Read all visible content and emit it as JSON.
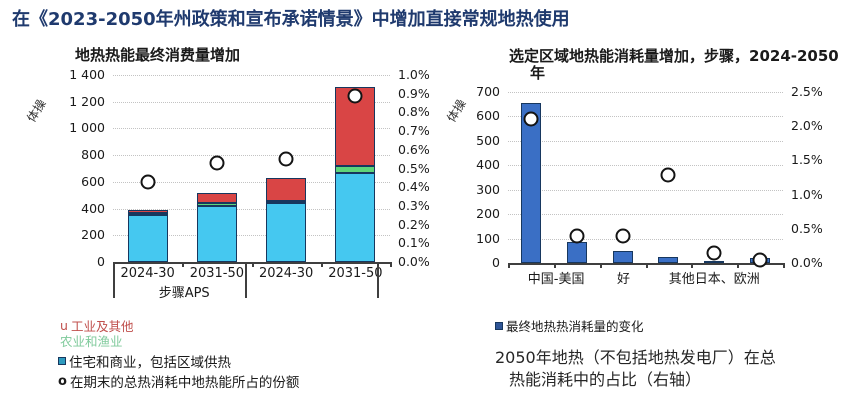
{
  "page": {
    "title": "在《2023-2050年州政策和宣布承诺情景》中增加直接常规地热使用"
  },
  "colors": {
    "title_blue": "#1f3a6e",
    "residential": "#45c8f0",
    "agriculture": "#5fd57a",
    "industry": "#d94545",
    "bar_blue": "#3a6fc5",
    "bar_border": "#17375e",
    "legend_red": "#c0504d",
    "legend_green": "#7fca9b",
    "legend_square_left": "#2e9bbf",
    "legend_square_right": "#2f5597"
  },
  "chart_data": [
    {
      "type": "bar",
      "title": "地热热能最终消费量增加",
      "ylabel": "体操",
      "categories": [
        "2024-30",
        "2031-50",
        "2024-30",
        "2031-50"
      ],
      "group_labels": [
        "步骤",
        "APS"
      ],
      "series": [
        {
          "name": "住宅和商业，包括区域供热",
          "color_key": "residential",
          "values": [
            350,
            420,
            440,
            665
          ]
        },
        {
          "name": "农业和渔业",
          "color_key": "agriculture",
          "values": [
            15,
            25,
            20,
            50
          ]
        },
        {
          "name": "工业及其他",
          "color_key": "industry",
          "values": [
            25,
            75,
            170,
            595
          ]
        }
      ],
      "scatter": {
        "name": "在期末的总热消耗中地热能所占的份额",
        "values_pct": [
          0.43,
          0.53,
          0.55,
          0.89
        ]
      },
      "ylim": [
        0,
        1400
      ],
      "yticks": [
        "0",
        "200",
        "400",
        "600",
        "800",
        "1 000",
        "1 200",
        "1 400"
      ],
      "y2lim": [
        0,
        1.0
      ],
      "y2ticks": [
        "0.0%",
        "0.1%",
        "0.2%",
        "0.3%",
        "0.4%",
        "0.5%",
        "0.6%",
        "0.7%",
        "0.8%",
        "0.9%",
        "1.0%"
      ],
      "grid": true,
      "legend_position": "below"
    },
    {
      "type": "bar",
      "title": "选定区域地热能消耗量增加，步骤，2024-2050年",
      "title_lines": [
        "选定区域地热能消耗量增加，步骤，2024-2050",
        "年"
      ],
      "ylabel": "体操",
      "x_group_labels": [
        "中国-美国",
        "好",
        "其他日本、欧洲"
      ],
      "values": [
        655,
        85,
        50,
        25,
        8,
        20
      ],
      "scatter": {
        "name": "2050年地热（不包括地热发电厂）在总热能消耗中的占比（右轴）",
        "values_pct": [
          2.1,
          0.39,
          0.4,
          1.28,
          0.15,
          0.05
        ]
      },
      "ylim": [
        0,
        700
      ],
      "yticks": [
        "0",
        "100",
        "200",
        "300",
        "400",
        "500",
        "600",
        "700"
      ],
      "y2lim": [
        0,
        2.5
      ],
      "y2ticks": [
        "0.0%",
        "0.5%",
        "1.0%",
        "1.5%",
        "2.0%",
        "2.5%"
      ],
      "grid": true,
      "legend_position": "below"
    }
  ],
  "legend_left": {
    "items": [
      {
        "marker": "u",
        "label": "工业及其他"
      },
      {
        "marker": "",
        "label": "农业和渔业"
      },
      {
        "marker": "square",
        "label": "住宅和商业，包括区域供热"
      },
      {
        "marker": "o",
        "label": "在期末的总热消耗中地热能所占的份额"
      }
    ]
  },
  "legend_right": {
    "marker": "square",
    "label": "最终地热热消耗量的变化"
  },
  "caption": {
    "line1": "2050年地热（不包括地热发电厂）在总",
    "line2": "热能消耗中的占比（右轴）"
  }
}
